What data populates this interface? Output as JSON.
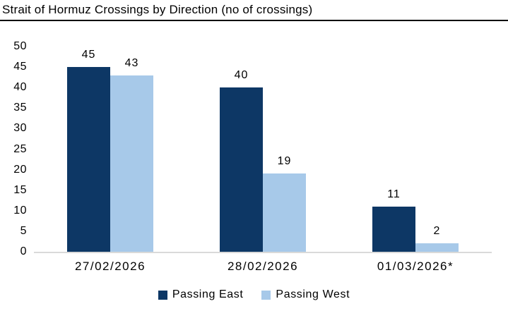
{
  "chart_data": {
    "type": "bar",
    "title": "Strait of Hormuz Crossings by Direction (no of crossings)",
    "categories": [
      "27/02/2026",
      "28/02/2026",
      "01/03/2026*"
    ],
    "series": [
      {
        "name": "Passing East",
        "color": "#0d3765",
        "values": [
          45,
          40,
          11
        ]
      },
      {
        "name": "Passing West",
        "color": "#a7c9e9",
        "values": [
          43,
          19,
          2
        ]
      }
    ],
    "ylim": [
      0,
      50
    ],
    "yticks": [
      0,
      5,
      10,
      15,
      20,
      25,
      30,
      35,
      40,
      45,
      50
    ],
    "xlabel": "",
    "ylabel": "",
    "grid": false,
    "data_labels": true,
    "legend_position": "bottom",
    "axis_line_color": "#d9d9d9",
    "text_color": "#000000",
    "background_color": "#ffffff"
  }
}
